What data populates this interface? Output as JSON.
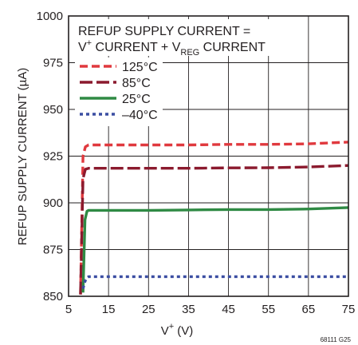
{
  "chart_data": {
    "type": "line",
    "title": "",
    "xlabel": "V+ (V)",
    "ylabel": "REFUP SUPPLY CURRENT (µA)",
    "xlim": [
      5,
      75
    ],
    "ylim": [
      850,
      1000
    ],
    "xticks": [
      5,
      15,
      25,
      35,
      45,
      55,
      65,
      75
    ],
    "yticks": [
      850,
      875,
      900,
      925,
      950,
      975,
      1000
    ],
    "grid": true,
    "annotation": {
      "line1": "REFUP SUPPLY CURRENT =",
      "line2_v": "V",
      "line2_sup": "+",
      "line2_mid": " CURRENT + V",
      "line2_sub": "REG",
      "line2_end": " CURRENT"
    },
    "legend_position": "top-left",
    "series": [
      {
        "name": "125°C",
        "color": "#e0393e",
        "dash": "dashed",
        "x": [
          8.0,
          8.6,
          9.2,
          10.0,
          15,
          25,
          35,
          45,
          55,
          65,
          75
        ],
        "y": [
          851,
          925,
          930,
          931,
          931,
          931,
          931,
          931.3,
          931.3,
          931.6,
          932.5
        ]
      },
      {
        "name": "85°C",
        "color": "#8b1a2e",
        "dash": "longdash",
        "x": [
          8.0,
          8.6,
          9.2,
          10.0,
          15,
          25,
          35,
          45,
          55,
          65,
          75
        ],
        "y": [
          851,
          913,
          918,
          918.5,
          918.5,
          918.5,
          918.5,
          918.7,
          918.8,
          919.2,
          920
        ]
      },
      {
        "name": "25°C",
        "color": "#2f8a44",
        "dash": "solid",
        "x": [
          8.6,
          9.1,
          9.6,
          10.0,
          15,
          25,
          35,
          45,
          55,
          65,
          75
        ],
        "y": [
          852,
          891,
          895.5,
          896,
          896,
          896,
          896.2,
          896.4,
          896.4,
          896.7,
          897.5
        ]
      },
      {
        "name": "–40°C",
        "color": "#3b4ea2",
        "dash": "dotted",
        "x": [
          8.6,
          9.1,
          9.6,
          10.0,
          15,
          25,
          35,
          45,
          55,
          65,
          75
        ],
        "y": [
          854,
          858,
          860,
          860.5,
          860.5,
          860.5,
          860.5,
          860.5,
          860.5,
          860.5,
          860.5
        ]
      }
    ],
    "figure_id": "68111 G25"
  }
}
